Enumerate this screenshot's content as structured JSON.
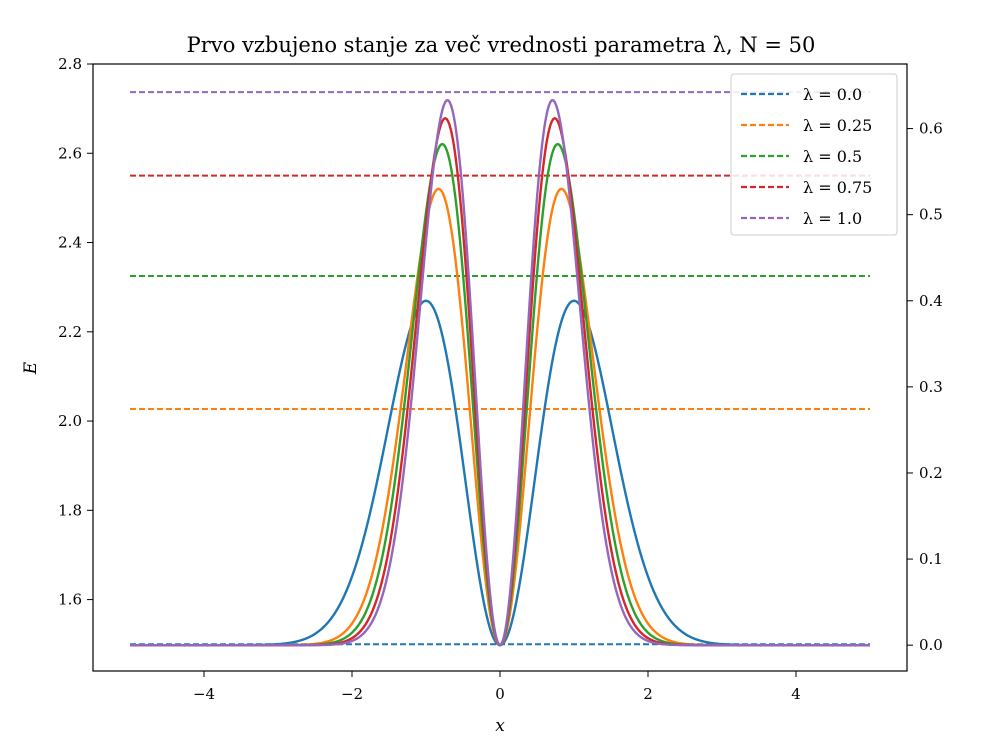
{
  "chart_data": {
    "type": "line",
    "title": "Prvo vzbujeno stanje za več vrednosti parametra λ, N = 50",
    "xlabel": "x",
    "ylabel": "E",
    "xlim": [
      -5.5,
      5.5
    ],
    "ylim_left": [
      1.44,
      2.8
    ],
    "ylim_right": [
      -0.03,
      0.675
    ],
    "x_ticks": [
      -4,
      -2,
      0,
      2,
      4
    ],
    "x_tick_labels": [
      "−4",
      "−2",
      "0",
      "2",
      "4"
    ],
    "y_ticks_left": [
      1.6,
      1.8,
      2.0,
      2.2,
      2.4,
      2.6,
      2.8
    ],
    "y_tick_labels_left": [
      "1.6",
      "1.8",
      "2.0",
      "2.2",
      "2.4",
      "2.6",
      "2.8"
    ],
    "y_ticks_right": [
      0.0,
      0.1,
      0.2,
      0.3,
      0.4,
      0.5,
      0.6
    ],
    "y_tick_labels_right": [
      "0.0",
      "0.1",
      "0.2",
      "0.3",
      "0.4",
      "0.5",
      "0.6"
    ],
    "grid": false,
    "legend_position": "top-right",
    "x_range": [
      -5,
      5
    ],
    "series": [
      {
        "name": "λ = 0.0",
        "color": "#1f77b4",
        "energy": 1.5,
        "peak_x": 1.0,
        "peak_density": 0.4
      },
      {
        "name": "λ = 0.25",
        "color": "#ff7f0e",
        "energy": 2.027,
        "peak_x": 0.83,
        "peak_density": 0.53
      },
      {
        "name": "λ = 0.5",
        "color": "#2ca02c",
        "energy": 2.325,
        "peak_x": 0.78,
        "peak_density": 0.582
      },
      {
        "name": "λ = 0.75",
        "color": "#d62728",
        "energy": 2.55,
        "peak_x": 0.74,
        "peak_density": 0.612
      },
      {
        "name": "λ = 1.0",
        "color": "#9467bd",
        "energy": 2.737,
        "peak_x": 0.71,
        "peak_density": 0.633
      }
    ]
  }
}
